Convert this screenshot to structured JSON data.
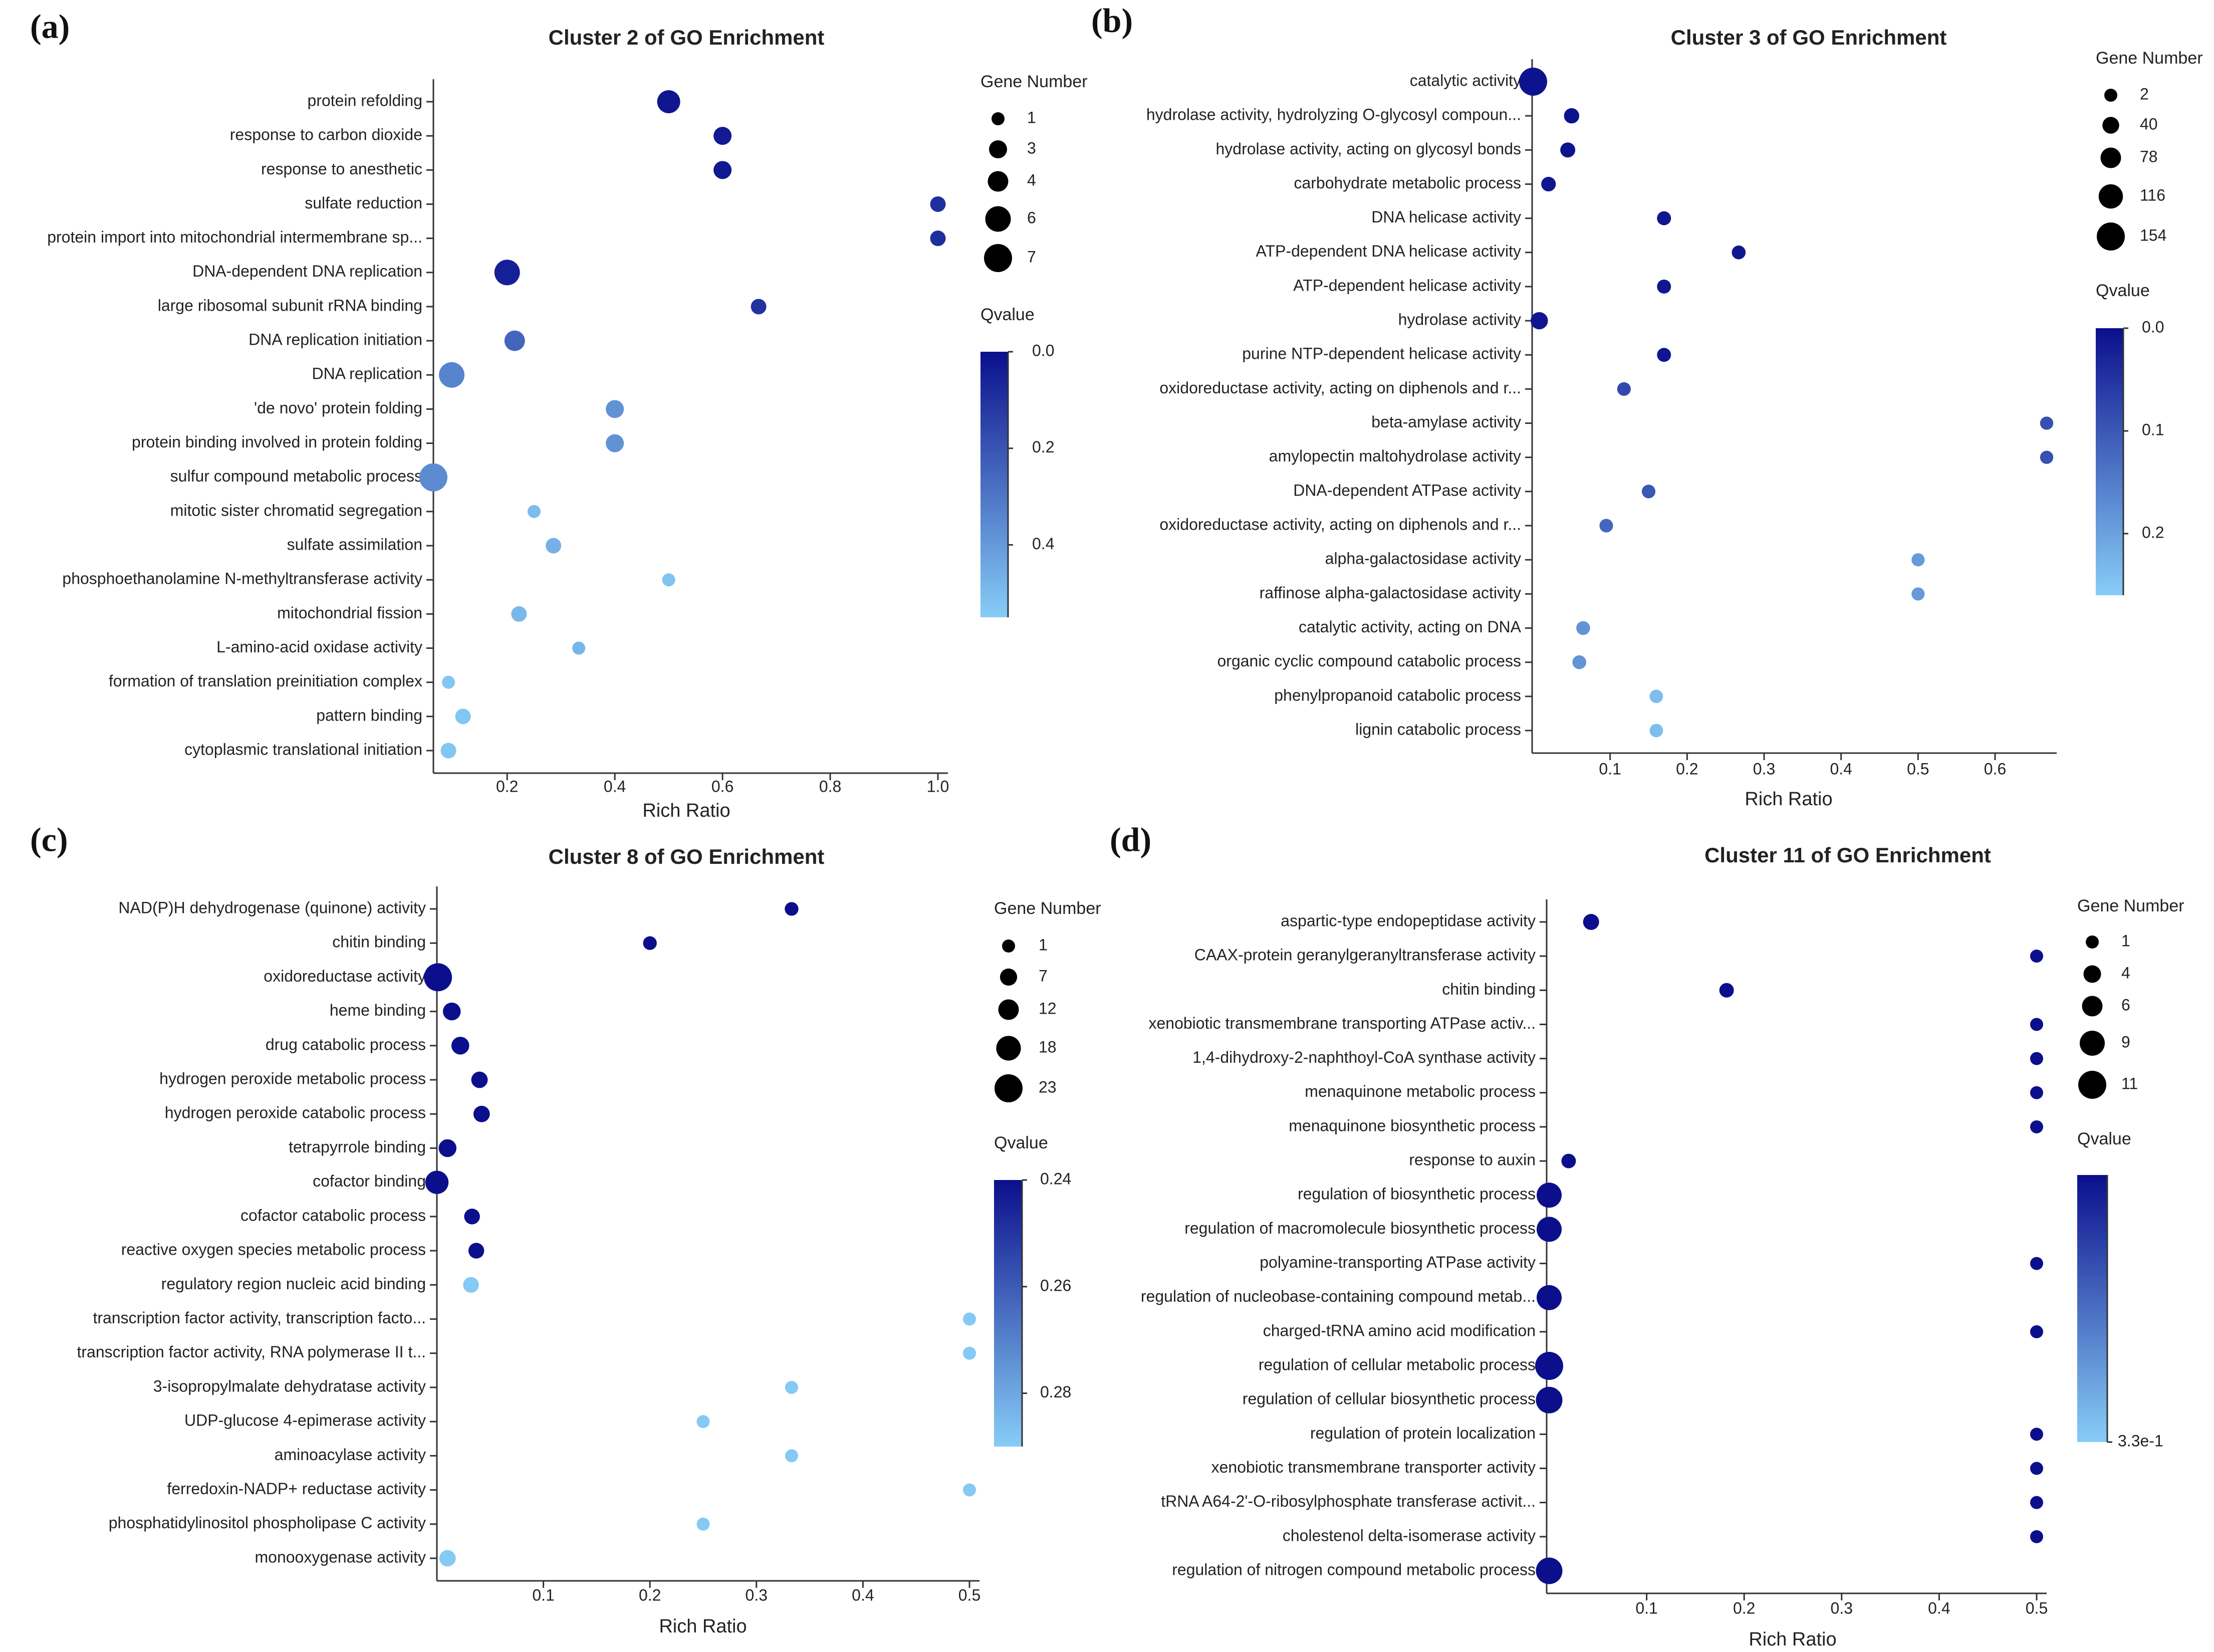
{
  "chart_data": [
    {
      "panel": "(a)",
      "type": "scatter",
      "title": "Cluster 2 of GO Enrichment",
      "xlabel": "Rich Ratio",
      "ylabel": "",
      "xlim": [
        0.063,
        1.0
      ],
      "xticks": [
        0.2,
        0.4,
        0.6,
        0.8,
        1.0
      ],
      "xtick_labels": [
        "0.2",
        "0.4",
        "0.6",
        "0.8",
        "1.0"
      ],
      "size_legend": {
        "title": "Gene Number",
        "values": [
          1,
          3,
          4,
          6,
          7
        ],
        "labels": [
          "1",
          "3",
          "4",
          "6",
          "7"
        ]
      },
      "color_legend": {
        "title": "Qvalue",
        "range": [
          0.0,
          0.55
        ],
        "ticks": [
          0.0,
          0.2,
          0.4
        ],
        "tick_labels": [
          "0.0",
          "0.2",
          "0.4"
        ],
        "dark": "#0b0f8c",
        "light": "#87cdf7"
      },
      "categories": [
        "protein refolding",
        "response to carbon dioxide",
        "response to anesthetic",
        "sulfate reduction",
        "protein import into mitochondrial intermembrane sp...",
        "DNA-dependent DNA replication",
        "large ribosomal subunit rRNA binding",
        "DNA replication initiation",
        "DNA replication",
        "'de novo' protein folding",
        "protein binding involved in protein folding",
        "sulfur compound metabolic process",
        "mitotic sister chromatid segregation",
        "sulfate assimilation",
        "phosphoethanolamine N-methyltransferase activity",
        "mitochondrial fission",
        "L-amino-acid oxidase activity",
        "formation of translation preinitiation complex",
        "pattern binding",
        "cytoplasmic translational initiation"
      ],
      "rich_ratio": [
        0.5,
        0.6,
        0.6,
        1.0,
        1.0,
        0.2,
        0.667,
        0.214,
        0.097,
        0.4,
        0.4,
        0.063,
        0.25,
        0.286,
        0.5,
        0.222,
        0.333,
        0.091,
        0.118,
        0.091
      ],
      "gene_number": [
        5,
        3,
        3,
        2,
        2,
        6,
        2,
        4,
        6,
        3,
        3,
        7,
        1,
        2,
        1,
        2,
        1,
        1,
        2,
        2
      ],
      "qvalue": [
        0.02,
        0.03,
        0.03,
        0.09,
        0.09,
        0.05,
        0.1,
        0.25,
        0.34,
        0.38,
        0.38,
        0.36,
        0.5,
        0.47,
        0.52,
        0.49,
        0.48,
        0.53,
        0.53,
        0.53
      ]
    },
    {
      "panel": "(b)",
      "type": "scatter",
      "title": "Cluster 3 of GO Enrichment",
      "xlabel": "Rich Ratio",
      "ylabel": "",
      "xlim": [
        0.0,
        0.667
      ],
      "xticks": [
        0.1,
        0.2,
        0.3,
        0.4,
        0.5,
        0.6
      ],
      "xtick_labels": [
        "0.1",
        "0.2",
        "0.3",
        "0.4",
        "0.5",
        "0.6"
      ],
      "size_legend": {
        "title": "Gene Number",
        "values": [
          2,
          40,
          78,
          116,
          154
        ],
        "labels": [
          "2",
          "40",
          "78",
          "116",
          "154"
        ]
      },
      "color_legend": {
        "title": "Qvalue",
        "range": [
          0.0,
          0.26
        ],
        "ticks": [
          0.0,
          0.1,
          0.2
        ],
        "tick_labels": [
          "0.0",
          "0.1",
          "0.2"
        ],
        "dark": "#0b0f8c",
        "light": "#87cdf7"
      },
      "categories": [
        "catalytic activity",
        "hydrolase activity, hydrolyzing O-glycosyl compoun...",
        "hydrolase activity, acting on glycosyl bonds",
        "carbohydrate metabolic process",
        "DNA helicase activity",
        "ATP-dependent DNA helicase activity",
        "ATP-dependent helicase activity",
        "hydrolase activity",
        "purine NTP-dependent helicase activity",
        "oxidoreductase activity, acting on diphenols and r...",
        "beta-amylase activity",
        "amylopectin maltohydrolase activity",
        "DNA-dependent ATPase activity",
        "oxidoreductase activity, acting on diphenols and r...",
        "alpha-galactosidase activity",
        "raffinose alpha-galactosidase activity",
        "catalytic activity, acting on DNA",
        "organic cyclic compound catabolic process",
        "phenylpropanoid catabolic process",
        "lignin catabolic process"
      ],
      "rich_ratio": [
        0.0,
        0.05,
        0.045,
        0.02,
        0.17,
        0.267,
        0.17,
        0.008,
        0.17,
        0.118,
        0.667,
        0.667,
        0.15,
        0.095,
        0.5,
        0.5,
        0.065,
        0.06,
        0.16,
        0.16
      ],
      "gene_number": [
        154,
        25,
        22,
        18,
        12,
        10,
        12,
        45,
        12,
        8,
        4,
        4,
        8,
        8,
        3,
        3,
        10,
        10,
        6,
        6
      ],
      "qvalue": [
        0.005,
        0.005,
        0.005,
        0.01,
        0.01,
        0.01,
        0.01,
        0.01,
        0.01,
        0.08,
        0.09,
        0.09,
        0.1,
        0.12,
        0.19,
        0.19,
        0.18,
        0.18,
        0.24,
        0.24
      ]
    },
    {
      "panel": "(c)",
      "type": "scatter",
      "title": "Cluster 8 of GO Enrichment",
      "xlabel": "Rich Ratio",
      "ylabel": "",
      "xlim": [
        0.0,
        0.5
      ],
      "xticks": [
        0.1,
        0.2,
        0.3,
        0.4,
        0.5
      ],
      "xtick_labels": [
        "0.1",
        "0.2",
        "0.3",
        "0.4",
        "0.5"
      ],
      "size_legend": {
        "title": "Gene Number",
        "values": [
          1,
          7,
          12,
          18,
          23
        ],
        "labels": [
          "1",
          "7",
          "12",
          "18",
          "23"
        ]
      },
      "color_legend": {
        "title": "Qvalue",
        "range": [
          0.24,
          0.29
        ],
        "ticks": [
          0.24,
          0.26,
          0.28
        ],
        "tick_labels": [
          "0.24",
          "0.26",
          "0.28"
        ],
        "dark": "#0b0f8c",
        "light": "#87cdf7"
      },
      "categories": [
        "NAD(P)H dehydrogenase (quinone) activity",
        "chitin binding",
        "oxidoreductase activity",
        "heme binding",
        "drug catabolic process",
        "hydrogen peroxide metabolic process",
        "hydrogen peroxide catabolic process",
        "tetrapyrrole binding",
        "cofactor binding",
        "cofactor catabolic process",
        "reactive oxygen species metabolic process",
        "regulatory region nucleic acid binding",
        "transcription factor activity, transcription facto...",
        "transcription factor activity, RNA polymerase II t...",
        "3-isopropylmalate dehydratase activity",
        "UDP-glucose 4-epimerase activity",
        "aminoacylase activity",
        "ferredoxin-NADP+ reductase activity",
        "phosphatidylinositol phospholipase C activity",
        "monooxygenase activity"
      ],
      "rich_ratio": [
        0.333,
        0.2,
        0.001,
        0.014,
        0.022,
        0.04,
        0.042,
        0.01,
        0.0,
        0.033,
        0.037,
        0.032,
        0.5,
        0.5,
        0.333,
        0.25,
        0.333,
        0.5,
        0.25,
        0.01
      ],
      "gene_number": [
        2,
        2,
        23,
        8,
        8,
        6,
        6,
        8,
        16,
        5,
        5,
        5,
        1,
        1,
        1,
        1,
        1,
        1,
        1,
        6
      ],
      "qvalue": [
        0.24,
        0.24,
        0.24,
        0.24,
        0.24,
        0.24,
        0.24,
        0.24,
        0.24,
        0.24,
        0.24,
        0.289,
        0.289,
        0.289,
        0.289,
        0.289,
        0.289,
        0.289,
        0.289,
        0.289
      ]
    },
    {
      "panel": "(d)",
      "type": "scatter",
      "title": "Cluster 11 of GO Enrichment",
      "xlabel": "Rich Ratio",
      "ylabel": "",
      "xlim": [
        0.0,
        0.5
      ],
      "xticks": [
        0.1,
        0.2,
        0.3,
        0.4,
        0.5
      ],
      "xtick_labels": [
        "0.1",
        "0.2",
        "0.3",
        "0.4",
        "0.5"
      ],
      "size_legend": {
        "title": "Gene Number",
        "values": [
          1,
          4,
          6,
          9,
          11
        ],
        "labels": [
          "1",
          "4",
          "6",
          "9",
          "11"
        ]
      },
      "color_legend": {
        "title": "Qvalue",
        "range": [
          0.0,
          0.33
        ],
        "ticks": [
          0.33
        ],
        "tick_labels": [
          "3.3e-1"
        ],
        "dark": "#0b0f8c",
        "light": "#87cdf7"
      },
      "categories": [
        "aspartic-type endopeptidase activity",
        "CAAX-protein geranylgeranyltransferase activity",
        "chitin binding",
        "xenobiotic transmembrane transporting ATPase activ...",
        "1,4-dihydroxy-2-naphthoyl-CoA synthase activity",
        "menaquinone metabolic process",
        "menaquinone biosynthetic process",
        "response to auxin",
        "regulation of biosynthetic process",
        "regulation of macromolecule biosynthetic process",
        "polyamine-transporting ATPase activity",
        "regulation of nucleobase-containing compound metab...",
        "charged-tRNA amino acid modification",
        "regulation of cellular metabolic process",
        "regulation of cellular biosynthetic process",
        "regulation of protein localization",
        "xenobiotic transmembrane transporter activity",
        "tRNA A64-2'-O-ribosylphosphate transferase activit...",
        "cholestenol delta-isomerase activity",
        "regulation of nitrogen compound metabolic process"
      ],
      "rich_ratio": [
        0.043,
        0.5,
        0.182,
        0.5,
        0.5,
        0.5,
        0.5,
        0.02,
        0.0,
        0.0,
        0.5,
        0.0,
        0.5,
        0.0,
        0.0,
        0.5,
        0.5,
        0.5,
        0.5,
        0.0
      ],
      "gene_number": [
        3,
        1,
        2,
        1,
        1,
        1,
        1,
        2,
        9,
        9,
        1,
        9,
        1,
        11,
        10,
        1,
        1,
        1,
        1,
        10
      ],
      "qvalue": [
        0.0,
        0.0,
        0.0,
        0.0,
        0.0,
        0.0,
        0.0,
        0.0,
        0.0,
        0.0,
        0.0,
        0.0,
        0.0,
        0.0,
        0.0,
        0.0,
        0.0,
        0.0,
        0.0,
        0.0
      ]
    }
  ]
}
